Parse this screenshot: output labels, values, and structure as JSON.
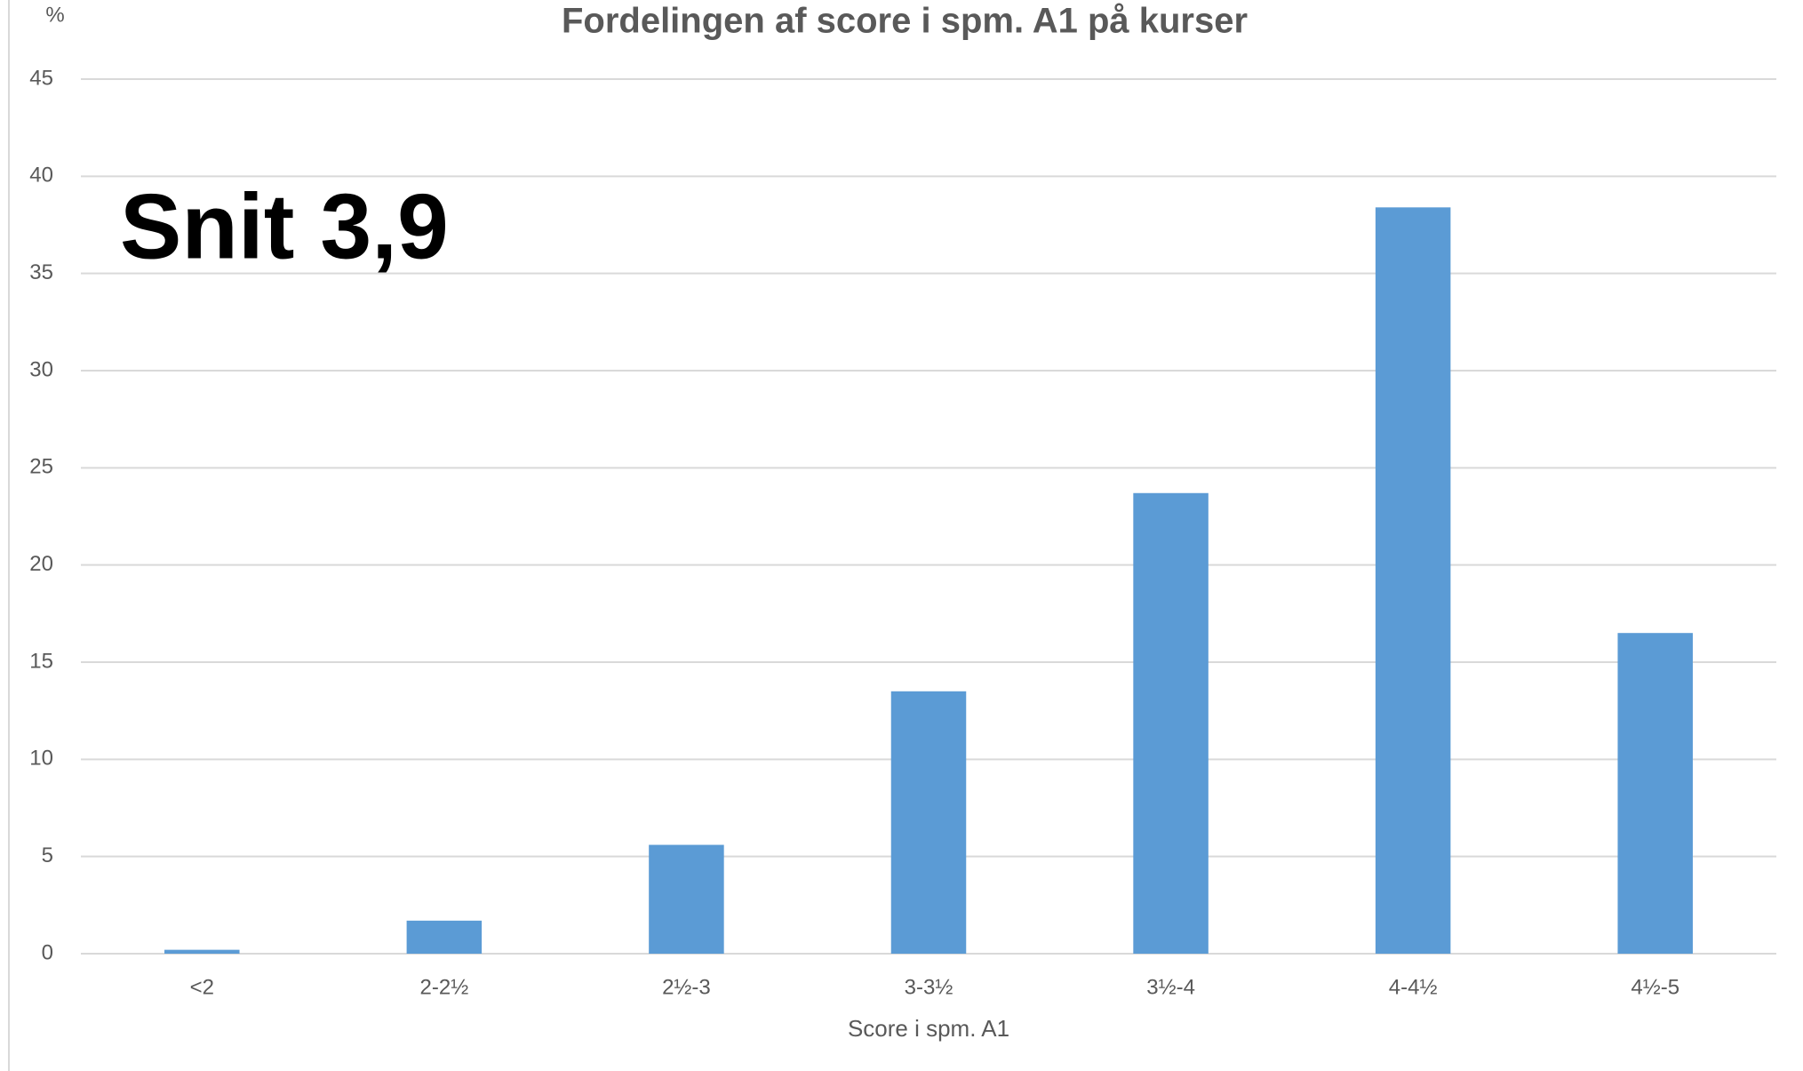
{
  "chart_data": {
    "type": "bar",
    "title": "Fordelingen af score i spm. A1 på kurser",
    "y_label": "%",
    "x_label": "Score i spm. A1",
    "annotation": "Snit 3,9",
    "categories": [
      "<2",
      "2-2½",
      "2½-3",
      "3-3½",
      "3½-4",
      "4-4½",
      "4½-5"
    ],
    "values": [
      0.2,
      1.7,
      5.6,
      13.5,
      23.7,
      38.4,
      16.5
    ],
    "color": "#5b9bd5",
    "ylim": [
      0,
      45
    ],
    "yticks": [
      0,
      5,
      10,
      15,
      20,
      25,
      30,
      35,
      40,
      45
    ],
    "grid": true
  }
}
